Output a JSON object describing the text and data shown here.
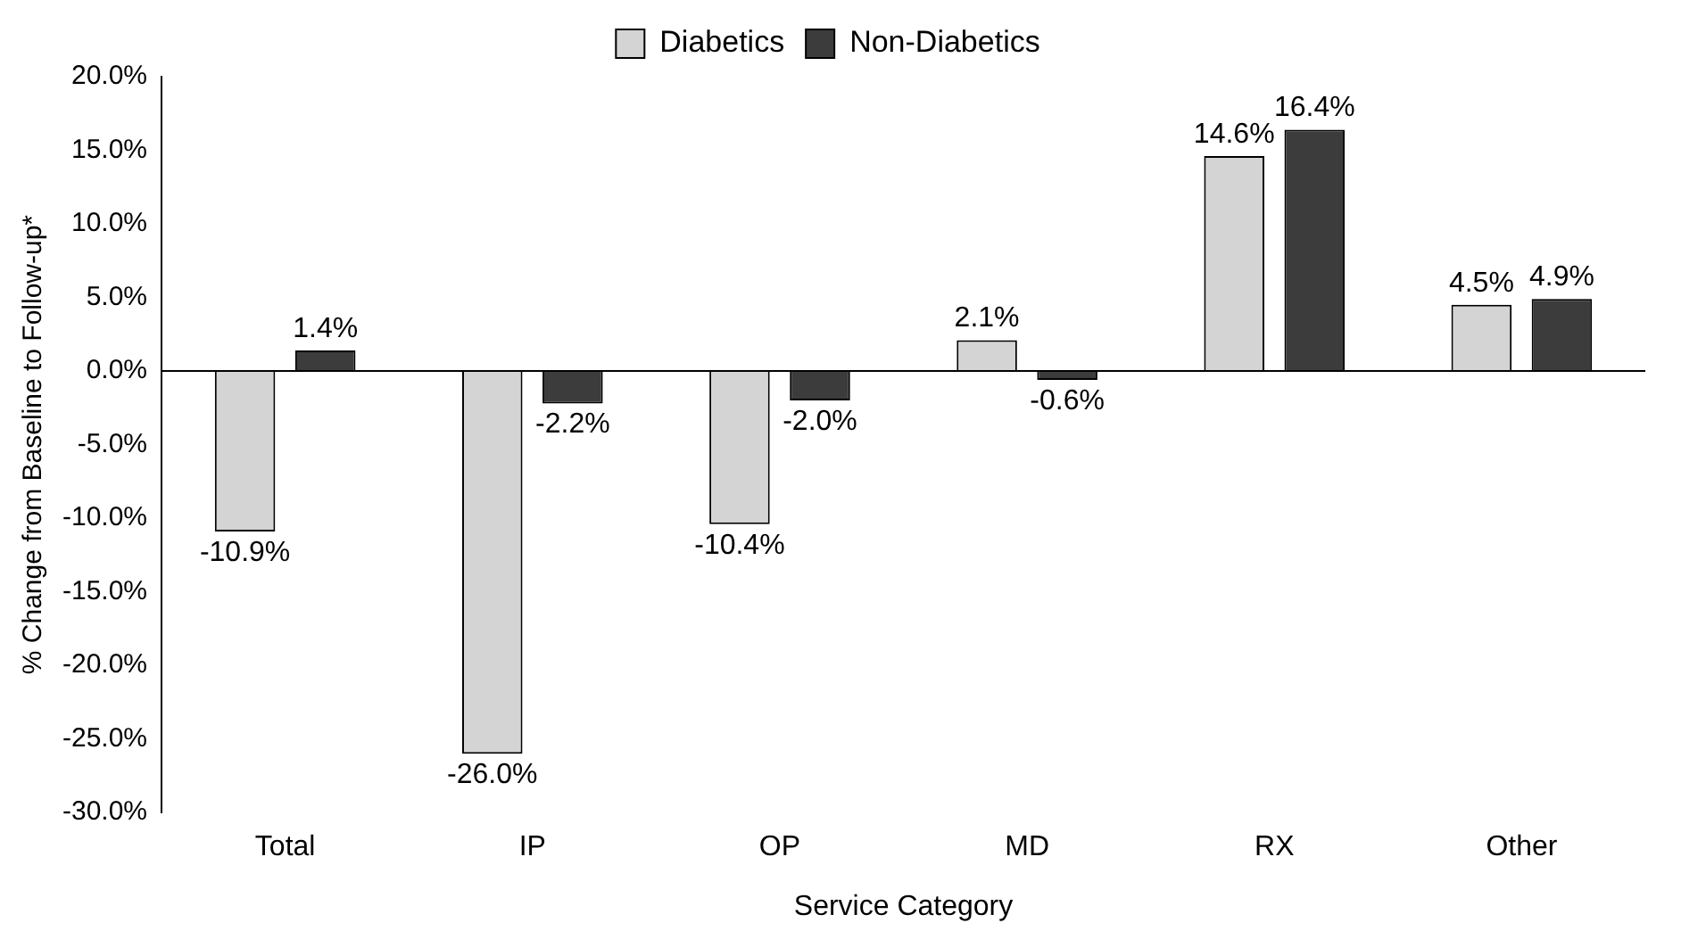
{
  "chart_data": {
    "type": "bar",
    "xlabel": "Service Category",
    "ylabel": "% Change from Baseline to Follow-up*",
    "categories": [
      "Total",
      "IP",
      "OP",
      "MD",
      "RX",
      "Other"
    ],
    "series": [
      {
        "name": "Diabetics",
        "color": "#d4d4d4",
        "values": [
          -10.9,
          -26.0,
          -10.4,
          2.1,
          14.6,
          4.5
        ],
        "value_labels": [
          "-10.9%",
          "-26.0%",
          "-10.4%",
          "2.1%",
          "14.6%",
          "4.5%"
        ]
      },
      {
        "name": "Non-Diabetics",
        "color": "#3c3c3c",
        "values": [
          1.4,
          -2.2,
          -2.0,
          -0.6,
          16.4,
          4.9
        ],
        "value_labels": [
          "1.4%",
          "-2.2%",
          "-2.0%",
          "-0.6%",
          "16.4%",
          "4.9%"
        ]
      }
    ],
    "ylim": [
      -30,
      20
    ],
    "yticks": [
      {
        "value": -30,
        "label": "-30.0%"
      },
      {
        "value": -25,
        "label": "-25.0%"
      },
      {
        "value": -20,
        "label": "-20.0%"
      },
      {
        "value": -15,
        "label": "-15.0%"
      },
      {
        "value": -10,
        "label": "-10.0%"
      },
      {
        "value": -5,
        "label": "-5.0%"
      },
      {
        "value": 0,
        "label": "0.0%"
      },
      {
        "value": 5,
        "label": "5.0%"
      },
      {
        "value": 10,
        "label": "10.0%"
      },
      {
        "value": 15,
        "label": "15.0%"
      },
      {
        "value": 20,
        "label": "20.0%"
      }
    ],
    "ref_lines": [
      {
        "axis": "y",
        "value": 0
      }
    ],
    "grid": false,
    "legend": "top"
  }
}
